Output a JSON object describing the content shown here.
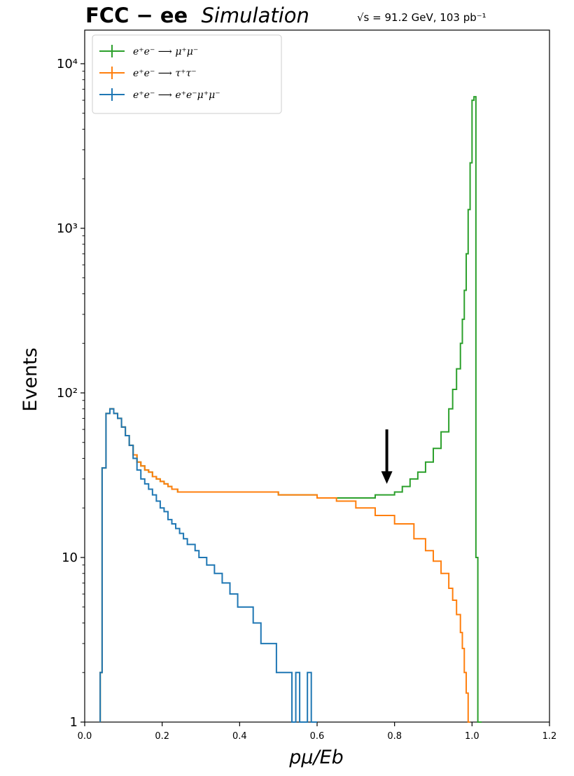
{
  "figure": {
    "title_bold": "FCC − ee",
    "title_italic": "Simulation",
    "energy_label": "√s = 91.2 GeV, 103 pb⁻¹"
  },
  "chart_data": {
    "type": "line",
    "xlabel": "pμ/Eb",
    "ylabel": "Events",
    "xlim": [
      0.0,
      1.2
    ],
    "ylim": [
      1,
      16000
    ],
    "yscale": "log",
    "xticks": [
      0.0,
      0.2,
      0.4,
      0.6,
      0.8,
      1.0,
      1.2
    ],
    "xtick_labels": [
      "0.0",
      "0.2",
      "0.4",
      "0.6",
      "0.8",
      "1.0",
      "1.2"
    ],
    "yticks": [
      1,
      10,
      100,
      1000,
      10000
    ],
    "ytick_labels": [
      "1",
      "10",
      "10²",
      "10³",
      "10⁴"
    ],
    "grid": false,
    "legend_position": "top-left",
    "annotation": {
      "type": "arrow",
      "x": 0.78,
      "y_from": 60,
      "y_to": 28
    },
    "series": [
      {
        "name": "e⁺e⁻ ⟶ μ⁺μ⁻",
        "color": "#2ca02c",
        "drawstyle": "steps",
        "x": [
          0.04,
          0.045,
          0.055,
          0.065,
          0.075,
          0.085,
          0.095,
          0.105,
          0.115,
          0.125,
          0.135,
          0.145,
          0.155,
          0.165,
          0.175,
          0.185,
          0.195,
          0.205,
          0.215,
          0.225,
          0.24,
          0.3,
          0.4,
          0.5,
          0.55,
          0.6,
          0.65,
          0.7,
          0.75,
          0.78,
          0.8,
          0.82,
          0.84,
          0.86,
          0.88,
          0.9,
          0.92,
          0.94,
          0.95,
          0.96,
          0.97,
          0.975,
          0.98,
          0.985,
          0.99,
          0.995,
          1.0,
          1.005,
          1.01,
          1.015,
          1.02
        ],
        "values": [
          2,
          35,
          75,
          80,
          75,
          70,
          62,
          55,
          48,
          42,
          38,
          36,
          34,
          33,
          31,
          30,
          29,
          28,
          27,
          26,
          25,
          25,
          25,
          24,
          24,
          23,
          23,
          23,
          24,
          24,
          25,
          27,
          30,
          33,
          38,
          46,
          58,
          80,
          105,
          140,
          200,
          280,
          420,
          700,
          1300,
          2500,
          6000,
          6300,
          10,
          1,
          1
        ]
      },
      {
        "name": "e⁺e⁻ ⟶ τ⁺τ⁻",
        "color": "#ff7f0e",
        "drawstyle": "steps",
        "x": [
          0.04,
          0.045,
          0.055,
          0.065,
          0.075,
          0.085,
          0.095,
          0.105,
          0.115,
          0.125,
          0.135,
          0.145,
          0.155,
          0.165,
          0.175,
          0.185,
          0.195,
          0.205,
          0.215,
          0.225,
          0.24,
          0.3,
          0.4,
          0.5,
          0.55,
          0.6,
          0.65,
          0.7,
          0.75,
          0.8,
          0.85,
          0.88,
          0.9,
          0.92,
          0.94,
          0.95,
          0.96,
          0.97,
          0.975,
          0.98,
          0.985,
          0.99
        ],
        "values": [
          2,
          35,
          75,
          80,
          75,
          70,
          62,
          55,
          48,
          42,
          38,
          36,
          34,
          33,
          31,
          30,
          29,
          28,
          27,
          26,
          25,
          25,
          25,
          24,
          24,
          23,
          22,
          20,
          18,
          16,
          13,
          11,
          9.5,
          8,
          6.5,
          5.5,
          4.5,
          3.5,
          2.8,
          2,
          1.5,
          1
        ]
      },
      {
        "name": "e⁺e⁻ ⟶ e⁺e⁻μ⁺μ⁻",
        "color": "#1f77b4",
        "drawstyle": "steps",
        "x": [
          0.04,
          0.045,
          0.055,
          0.065,
          0.075,
          0.085,
          0.095,
          0.105,
          0.115,
          0.125,
          0.135,
          0.145,
          0.155,
          0.165,
          0.175,
          0.185,
          0.195,
          0.205,
          0.215,
          0.225,
          0.235,
          0.245,
          0.255,
          0.265,
          0.275,
          0.285,
          0.295,
          0.305,
          0.315,
          0.325,
          0.335,
          0.345,
          0.355,
          0.365,
          0.375,
          0.385,
          0.395,
          0.405,
          0.415,
          0.425,
          0.435,
          0.445,
          0.455,
          0.465,
          0.475,
          0.485,
          0.495,
          0.505,
          0.515,
          0.525,
          0.535,
          0.545,
          0.555,
          0.565,
          0.575,
          0.585,
          0.595
        ],
        "values": [
          2,
          35,
          75,
          80,
          75,
          70,
          62,
          55,
          48,
          40,
          34,
          30,
          28,
          26,
          24,
          22,
          20,
          19,
          17,
          16,
          15,
          14,
          13,
          12,
          12,
          11,
          10,
          10,
          9,
          9,
          8,
          8,
          7,
          7,
          6,
          6,
          5,
          5,
          5,
          5,
          4,
          4,
          3,
          3,
          3,
          3,
          2,
          2,
          2,
          2,
          1,
          2,
          1,
          1,
          2,
          1,
          1
        ]
      }
    ]
  }
}
